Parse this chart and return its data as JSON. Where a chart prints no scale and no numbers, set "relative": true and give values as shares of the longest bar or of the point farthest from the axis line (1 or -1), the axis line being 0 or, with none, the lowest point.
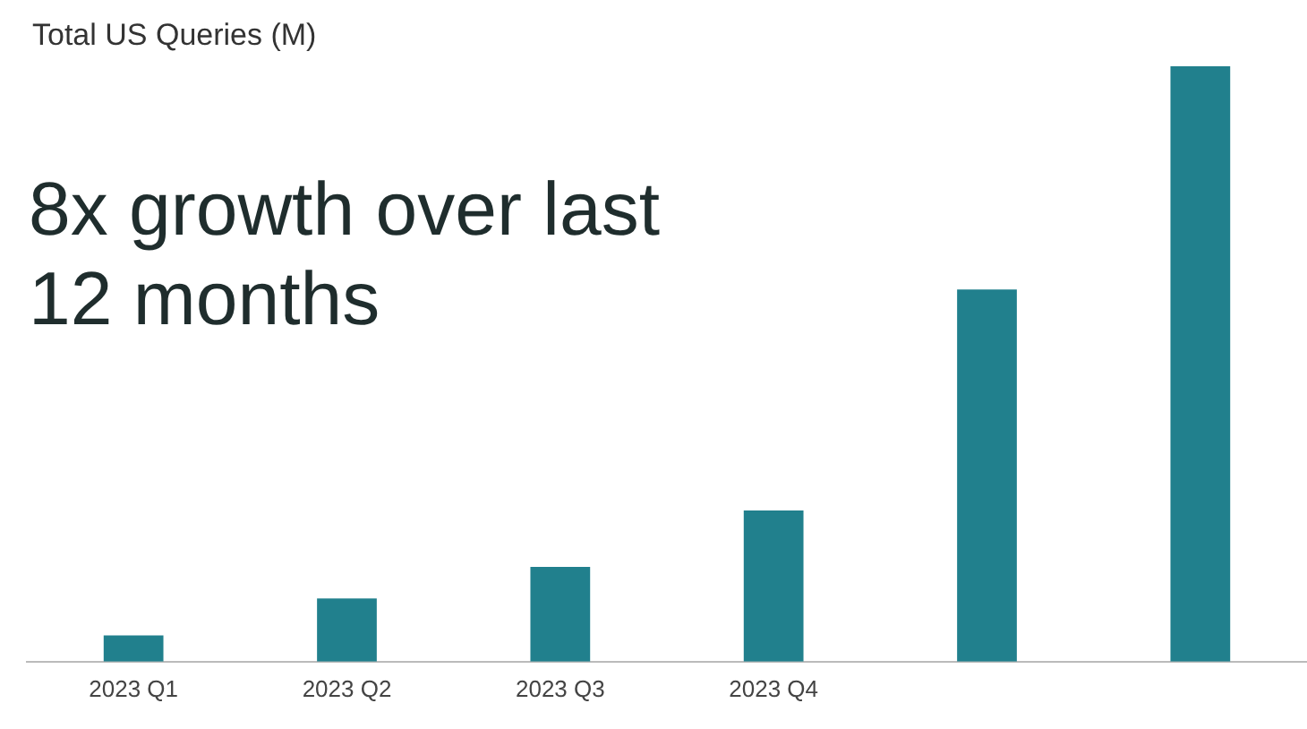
{
  "chart_data": {
    "type": "bar",
    "title": "Total US Queries (M)",
    "subtitle": "8x growth over last 12 months",
    "categories": [
      "2023 Q1",
      "2023 Q2",
      "2023 Q3",
      "2023 Q4",
      null,
      null
    ],
    "values": [
      0.044,
      0.106,
      0.159,
      0.254,
      0.625,
      1
    ],
    "color": "#21808d",
    "relative": true,
    "grid": false,
    "legend": false
  }
}
